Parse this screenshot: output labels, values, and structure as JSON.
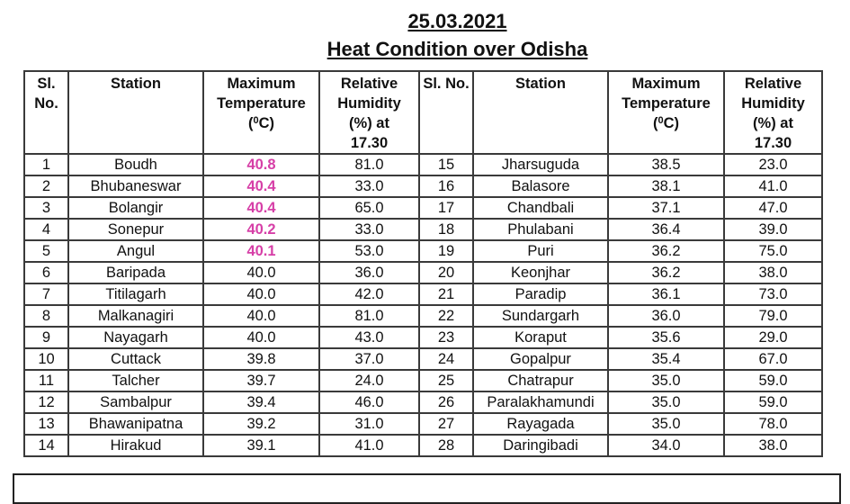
{
  "header": {
    "date": "25.03.2021",
    "title": "Heat Condition over Odisha"
  },
  "columns": {
    "sl_no": "Sl. No.",
    "station": "Station",
    "max_temp_line1": "Maximum",
    "max_temp_line2": "Temperature",
    "max_temp_unit_open": "(",
    "max_temp_unit_sup": "0",
    "max_temp_unit_close": "C)",
    "rh_line1": "Relative",
    "rh_line2": "Humidity",
    "rh_line3": "(%) at",
    "rh_line4": "17.30"
  },
  "highlight_color": "#d63fa7",
  "rows": [
    {
      "left": {
        "sl": "1",
        "station": "Boudh",
        "max_temp": "40.8",
        "rh": "81.0",
        "highlight": true
      },
      "right": {
        "sl": "15",
        "station": "Jharsuguda",
        "max_temp": "38.5",
        "rh": "23.0"
      }
    },
    {
      "left": {
        "sl": "2",
        "station": "Bhubaneswar",
        "max_temp": "40.4",
        "rh": "33.0",
        "highlight": true
      },
      "right": {
        "sl": "16",
        "station": "Balasore",
        "max_temp": "38.1",
        "rh": "41.0"
      }
    },
    {
      "left": {
        "sl": "3",
        "station": "Bolangir",
        "max_temp": "40.4",
        "rh": "65.0",
        "highlight": true
      },
      "right": {
        "sl": "17",
        "station": "Chandbali",
        "max_temp": "37.1",
        "rh": "47.0"
      }
    },
    {
      "left": {
        "sl": "4",
        "station": "Sonepur",
        "max_temp": "40.2",
        "rh": "33.0",
        "highlight": true
      },
      "right": {
        "sl": "18",
        "station": "Phulabani",
        "max_temp": "36.4",
        "rh": "39.0"
      }
    },
    {
      "left": {
        "sl": "5",
        "station": "Angul",
        "max_temp": "40.1",
        "rh": "53.0",
        "highlight": true
      },
      "right": {
        "sl": "19",
        "station": "Puri",
        "max_temp": "36.2",
        "rh": "75.0"
      }
    },
    {
      "left": {
        "sl": "6",
        "station": "Baripada",
        "max_temp": "40.0",
        "rh": "36.0"
      },
      "right": {
        "sl": "20",
        "station": "Keonjhar",
        "max_temp": "36.2",
        "rh": "38.0"
      }
    },
    {
      "left": {
        "sl": "7",
        "station": "Titilagarh",
        "max_temp": "40.0",
        "rh": "42.0"
      },
      "right": {
        "sl": "21",
        "station": "Paradip",
        "max_temp": "36.1",
        "rh": "73.0"
      }
    },
    {
      "left": {
        "sl": "8",
        "station": "Malkanagiri",
        "max_temp": "40.0",
        "rh": "81.0"
      },
      "right": {
        "sl": "22",
        "station": "Sundargarh",
        "max_temp": "36.0",
        "rh": "79.0"
      }
    },
    {
      "left": {
        "sl": "9",
        "station": "Nayagarh",
        "max_temp": "40.0",
        "rh": "43.0"
      },
      "right": {
        "sl": "23",
        "station": "Koraput",
        "max_temp": "35.6",
        "rh": "29.0"
      }
    },
    {
      "left": {
        "sl": "10",
        "station": "Cuttack",
        "max_temp": "39.8",
        "rh": "37.0"
      },
      "right": {
        "sl": "24",
        "station": "Gopalpur",
        "max_temp": "35.4",
        "rh": "67.0"
      }
    },
    {
      "left": {
        "sl": "11",
        "station": "Talcher",
        "max_temp": "39.7",
        "rh": "24.0"
      },
      "right": {
        "sl": "25",
        "station": "Chatrapur",
        "max_temp": "35.0",
        "rh": "59.0"
      }
    },
    {
      "left": {
        "sl": "12",
        "station": "Sambalpur",
        "max_temp": "39.4",
        "rh": "46.0"
      },
      "right": {
        "sl": "26",
        "station": "Paralakhamundi",
        "max_temp": "35.0",
        "rh": "59.0"
      }
    },
    {
      "left": {
        "sl": "13",
        "station": "Bhawanipatna",
        "max_temp": "39.2",
        "rh": "31.0"
      },
      "right": {
        "sl": "27",
        "station": "Rayagada",
        "max_temp": "35.0",
        "rh": "78.0"
      }
    },
    {
      "left": {
        "sl": "14",
        "station": "Hirakud",
        "max_temp": "39.1",
        "rh": "41.0"
      },
      "right": {
        "sl": "28",
        "station": "Daringibadi",
        "max_temp": "34.0",
        "rh": "38.0"
      }
    }
  ]
}
